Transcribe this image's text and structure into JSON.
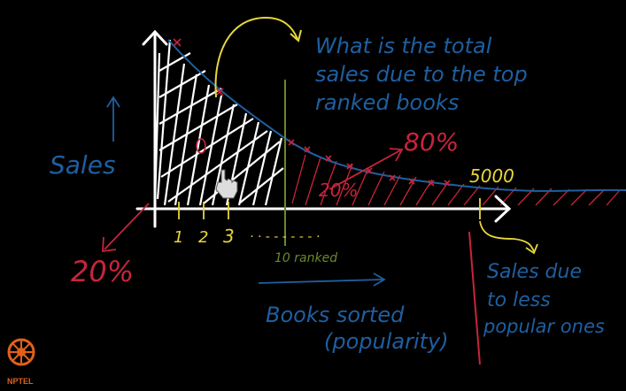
{
  "question_line1": "What is the total",
  "question_line2": "sales due to the top",
  "question_line3": "ranked books",
  "y_label": "Sales",
  "tick_1": "1",
  "tick_2": "2",
  "tick_3": "3",
  "tick_dots": "· · - - - - - -   ·",
  "ten_ranked": "10 ranked",
  "pct_80": "80%",
  "pct_20_left": "20%",
  "pct_20_mid": "20%",
  "label_5000": "5000",
  "sales_due_line1": "Sales due",
  "sales_due_line2": "to less",
  "sales_due_line3": "popular ones",
  "x_label_line1": "Books sorted",
  "x_label_line2": "(popularity)",
  "logo_text": "NPTEL",
  "colors": {
    "blue": "#1f5fa0",
    "red": "#c8243a",
    "yellow": "#e8d63a",
    "green": "#6a8a2a",
    "white": "#ffffff"
  }
}
